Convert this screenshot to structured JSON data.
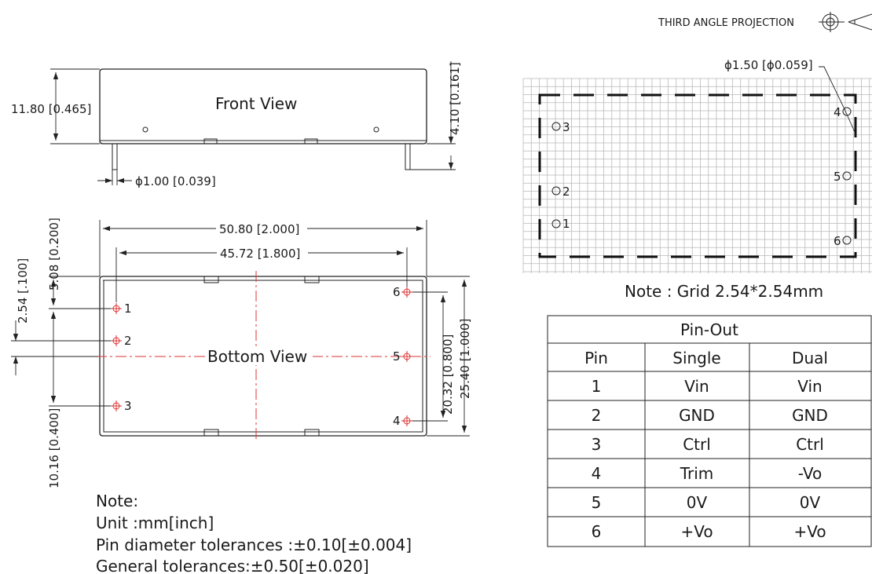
{
  "projection": {
    "label": "THIRD ANGLE PROJECTION"
  },
  "front_view": {
    "title": "Front View",
    "height_dim": "11.80 [0.465]",
    "pin_length_dim": "4.10 [0.161]",
    "pin_diameter_dim": "ϕ1.00 [0.039]"
  },
  "bottom_view": {
    "title": "Bottom View",
    "dims": {
      "overall_length": "50.80 [2.000]",
      "pin_span": "45.72 [1.800]",
      "offset_to_pin1": "5.08 [0.200]",
      "pin_pitch": "2.54 [.100]",
      "pin1_to_pin3": "10.16 [0.400]",
      "pin_row_span": "20.32 [0.800]",
      "overall_width": "25.40 [1.000]"
    },
    "pins": [
      {
        "number": "1"
      },
      {
        "number": "2"
      },
      {
        "number": "3"
      },
      {
        "number": "4"
      },
      {
        "number": "5"
      },
      {
        "number": "6"
      }
    ]
  },
  "notes": {
    "heading": "Note:",
    "lines": [
      "Unit :mm[inch]",
      "Pin diameter tolerances :±0.10[±0.004]",
      "General tolerances:±0.50[±0.020]"
    ]
  },
  "grid_view": {
    "hole_dim": "ϕ1.50 [ϕ0.059]",
    "grid_note": "Note : Grid 2.54*2.54mm",
    "pins": [
      {
        "number": "3"
      },
      {
        "number": "2"
      },
      {
        "number": "1"
      },
      {
        "number": "4"
      },
      {
        "number": "5"
      },
      {
        "number": "6"
      }
    ]
  },
  "pinout": {
    "title": "Pin-Out",
    "headers": [
      "Pin",
      "Single",
      "Dual"
    ],
    "rows": [
      [
        "1",
        "Vin",
        "Vin"
      ],
      [
        "2",
        "GND",
        "GND"
      ],
      [
        "3",
        "Ctrl",
        "Ctrl"
      ],
      [
        "4",
        "Trim",
        "-Vo"
      ],
      [
        "5",
        "0V",
        "0V"
      ],
      [
        "6",
        "+Vo",
        "+Vo"
      ]
    ]
  }
}
